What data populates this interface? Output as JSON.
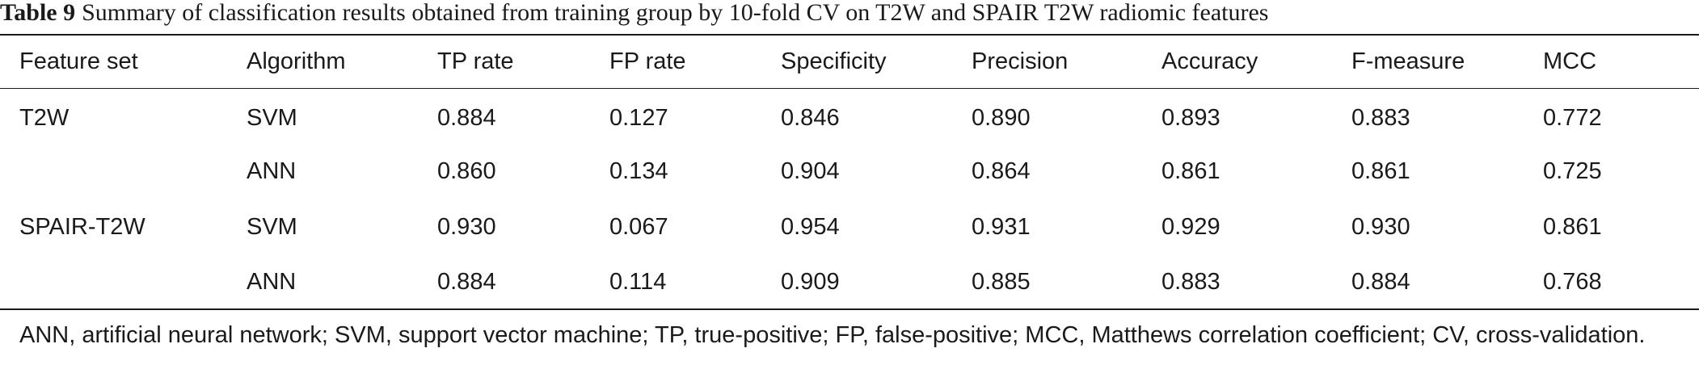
{
  "caption": {
    "label": "Table 9",
    "text": "Summary of classification results obtained from training group by 10-fold CV on T2W and SPAIR T2W radiomic features"
  },
  "table": {
    "headers": [
      "Feature set",
      "Algorithm",
      "TP rate",
      "FP rate",
      "Specificity",
      "Precision",
      "Accuracy",
      "F-measure",
      "MCC"
    ],
    "rows": [
      [
        "T2W",
        "SVM",
        "0.884",
        "0.127",
        "0.846",
        "0.890",
        "0.893",
        "0.883",
        "0.772"
      ],
      [
        "",
        "ANN",
        "0.860",
        "0.134",
        "0.904",
        "0.864",
        "0.861",
        "0.861",
        "0.725"
      ],
      [
        "SPAIR-T2W",
        "SVM",
        "0.930",
        "0.067",
        "0.954",
        "0.931",
        "0.929",
        "0.930",
        "0.861"
      ],
      [
        "",
        "ANN",
        "0.884",
        "0.114",
        "0.909",
        "0.885",
        "0.883",
        "0.884",
        "0.768"
      ]
    ]
  },
  "footnote": "ANN, artificial neural network; SVM, support vector machine; TP, true-positive; FP, false-positive; MCC, Matthews correlation coefficient; CV, cross-validation."
}
